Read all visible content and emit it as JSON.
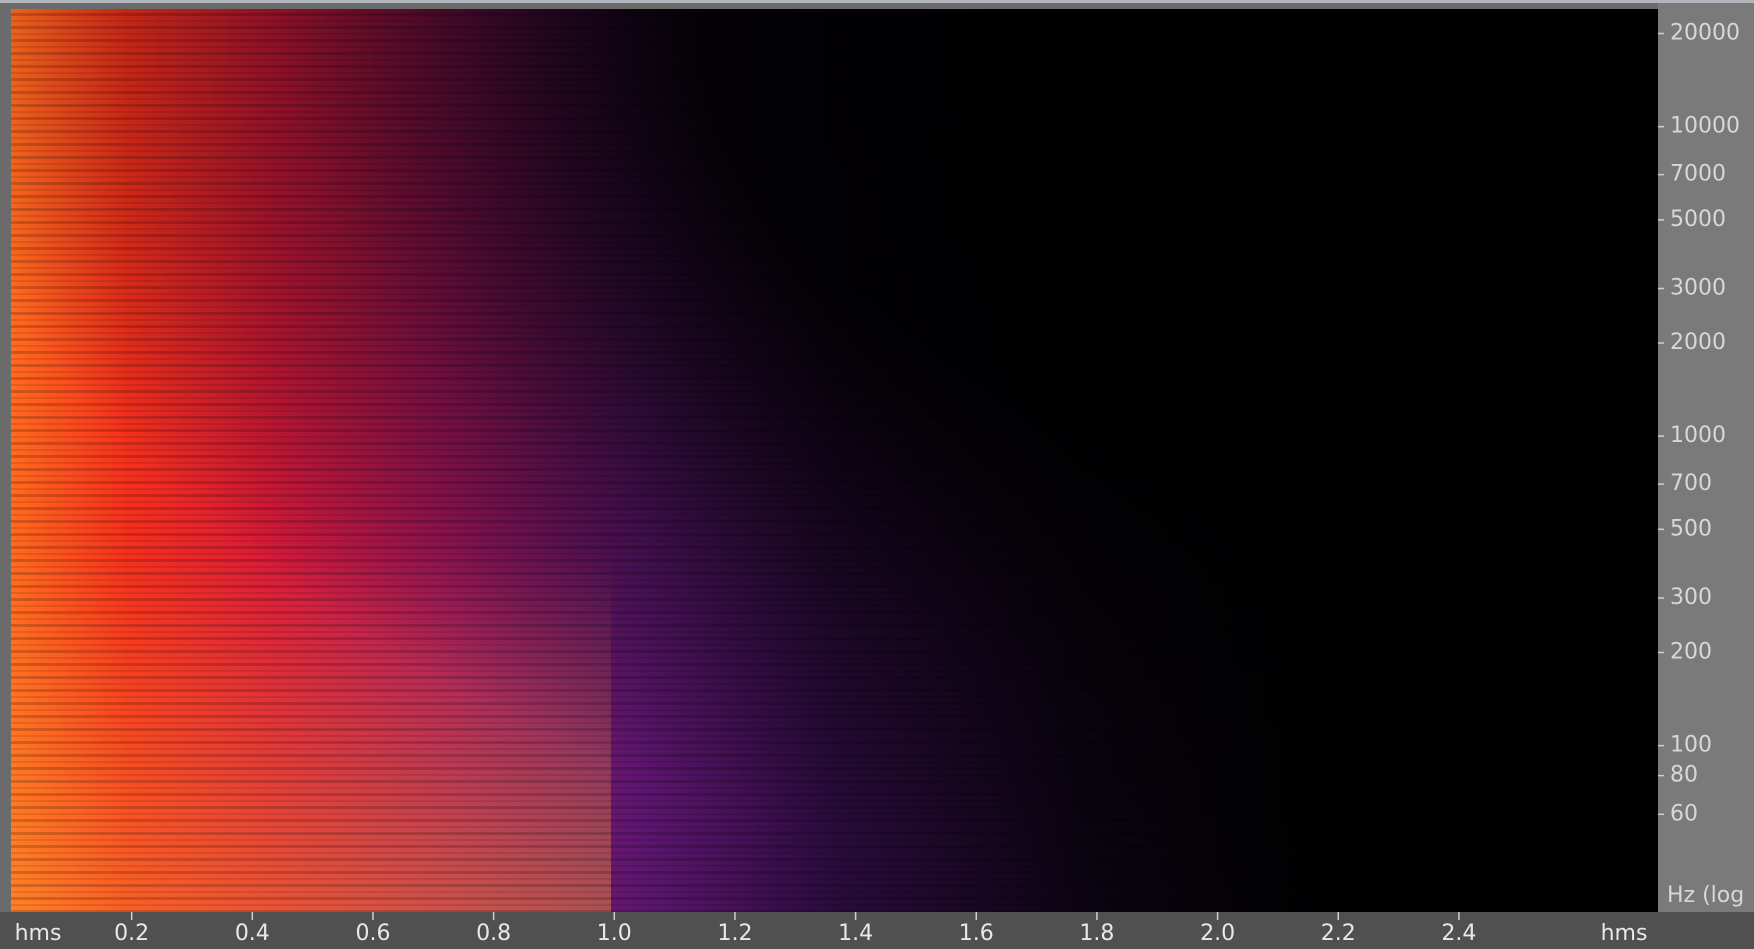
{
  "chart_data": {
    "type": "spectrogram",
    "x_label": "hms",
    "y_label": "Hz (log",
    "xlim": [
      0,
      2.73
    ],
    "xticks": [
      0.2,
      0.4,
      0.6,
      0.8,
      {
        "value": 1,
        "label": "1.0"
      },
      1.2,
      1.4,
      1.6,
      1.8,
      {
        "value": 2,
        "label": "2.0"
      },
      2.2,
      2.4
    ],
    "ylim": [
      29,
      24000
    ],
    "yticks": [
      20000,
      10000,
      7000,
      5000,
      3000,
      2000,
      1000,
      700,
      500,
      300,
      200,
      100,
      80,
      60
    ],
    "log_scale_y": true
  }
}
